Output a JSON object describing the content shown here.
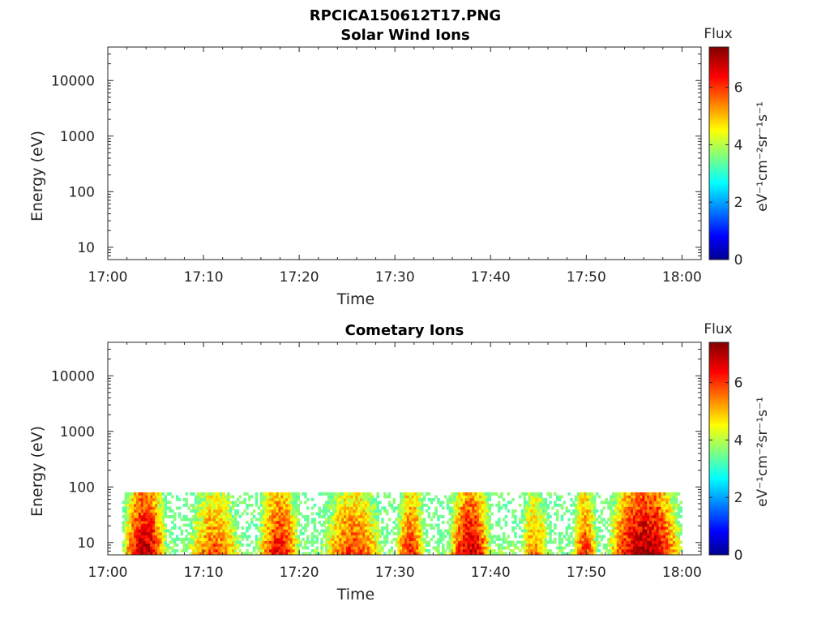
{
  "figure_title": "RPCICA150612T17.PNG",
  "chart_data": [
    {
      "type": "heatmap",
      "title": "Solar Wind Ions",
      "xlabel": "Time",
      "ylabel": "Energy (eV)",
      "x_ticks": [
        "17:00",
        "17:10",
        "17:20",
        "17:30",
        "17:40",
        "17:50",
        "18:00"
      ],
      "y_ticks": [
        "10",
        "100",
        "1000",
        "10000"
      ],
      "y_scale": "log",
      "y_range": [
        6,
        40000
      ],
      "x_range": [
        "17:00",
        "18:02"
      ],
      "colorbar": {
        "title": "Flux",
        "label": "eV⁻¹cm⁻²sr⁻¹s⁻¹",
        "range": [
          0,
          7.4
        ],
        "ticks": [
          "0",
          "2",
          "4",
          "6"
        ],
        "colormap": "jet"
      },
      "data": "empty"
    },
    {
      "type": "heatmap",
      "title": "Cometary Ions",
      "xlabel": "Time",
      "ylabel": "Energy (eV)",
      "x_ticks": [
        "17:00",
        "17:10",
        "17:20",
        "17:30",
        "17:40",
        "17:50",
        "18:00"
      ],
      "y_ticks": [
        "10",
        "100",
        "1000",
        "10000"
      ],
      "y_scale": "log",
      "y_range": [
        6,
        40000
      ],
      "x_range": [
        "17:00",
        "18:02"
      ],
      "colorbar": {
        "title": "Flux",
        "label": "eV⁻¹cm⁻²sr⁻¹s⁻¹",
        "range": [
          0,
          7.4
        ],
        "ticks": [
          "0",
          "2",
          "4",
          "6"
        ],
        "colormap": "jet"
      },
      "data_time_range": [
        "17:01.5",
        "18:00"
      ],
      "data_energy_range_eV": [
        6,
        80
      ],
      "peak_intervals": [
        {
          "start": "17:01.5",
          "end": "17:06",
          "flux": 7.0
        },
        {
          "start": "17:08",
          "end": "17:14",
          "flux": 5.8
        },
        {
          "start": "17:15.5",
          "end": "17:20",
          "flux": 6.4
        },
        {
          "start": "17:22",
          "end": "17:29",
          "flux": 6.0
        },
        {
          "start": "17:30",
          "end": "17:33",
          "flux": 6.2
        },
        {
          "start": "17:35.5",
          "end": "17:40",
          "flux": 6.8
        },
        {
          "start": "17:43",
          "end": "17:46",
          "flux": 5.6
        },
        {
          "start": "17:48.5",
          "end": "17:51",
          "flux": 6.0
        },
        {
          "start": "17:52",
          "end": "18:00",
          "flux": 7.2
        }
      ]
    }
  ]
}
